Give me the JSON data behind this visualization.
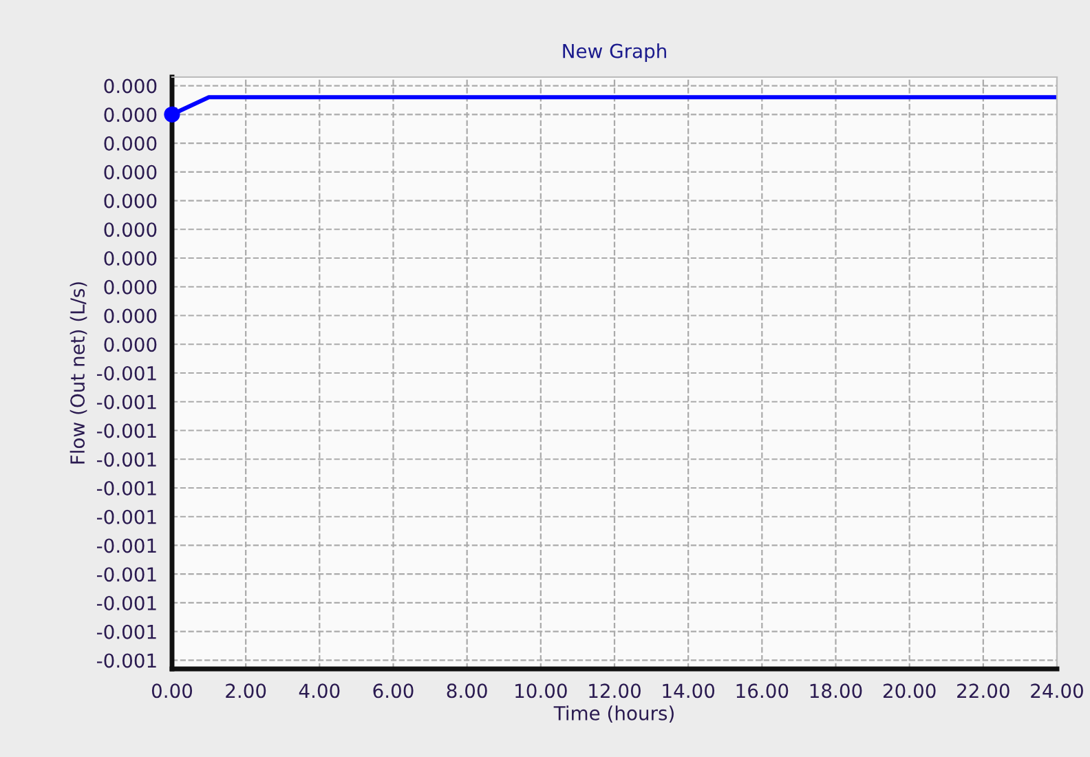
{
  "chart_data": {
    "type": "line",
    "title": "New Graph",
    "xlabel": "Time (hours)",
    "ylabel": "Flow (Out net) (L/s)",
    "x": [
      0,
      1.0,
      24
    ],
    "series": [
      {
        "color": "#0000ff",
        "values": [
          -5e-05,
          -2e-05,
          -2e-05
        ]
      },
      {
        "type": "scatter",
        "x": [
          0
        ],
        "color": "#0000ff",
        "values": [
          -5e-05
        ]
      }
    ],
    "xlim": [
      0,
      24
    ],
    "xticks": [
      {
        "value": 0,
        "label": "0.00"
      },
      {
        "value": 2,
        "label": "2.00"
      },
      {
        "value": 4,
        "label": "4.00"
      },
      {
        "value": 6,
        "label": "6.00"
      },
      {
        "value": 8,
        "label": "8.00"
      },
      {
        "value": 10,
        "label": "10.00"
      },
      {
        "value": 12,
        "label": "12.00"
      },
      {
        "value": 14,
        "label": "14.00"
      },
      {
        "value": 16,
        "label": "16.00"
      },
      {
        "value": 18,
        "label": "18.00"
      },
      {
        "value": 20,
        "label": "20.00"
      },
      {
        "value": 22,
        "label": "22.00"
      },
      {
        "value": 24,
        "label": "24.00"
      }
    ],
    "ylim": [
      -0.001015,
      1.5e-05
    ],
    "yticks": [
      {
        "value": 0,
        "label": "0.000"
      },
      {
        "value": -5e-05,
        "label": "0.000"
      },
      {
        "value": -0.0001,
        "label": "0.000"
      },
      {
        "value": -0.00015,
        "label": "0.000"
      },
      {
        "value": -0.0002,
        "label": "0.000"
      },
      {
        "value": -0.00025,
        "label": "0.000"
      },
      {
        "value": -0.0003,
        "label": "0.000"
      },
      {
        "value": -0.00035,
        "label": "0.000"
      },
      {
        "value": -0.0004,
        "label": "0.000"
      },
      {
        "value": -0.00045,
        "label": "0.000"
      },
      {
        "value": -0.0005,
        "label": "-0.001"
      },
      {
        "value": -0.00055,
        "label": "-0.001"
      },
      {
        "value": -0.0006,
        "label": "-0.001"
      },
      {
        "value": -0.00065,
        "label": "-0.001"
      },
      {
        "value": -0.0007,
        "label": "-0.001"
      },
      {
        "value": -0.00075,
        "label": "-0.001"
      },
      {
        "value": -0.0008,
        "label": "-0.001"
      },
      {
        "value": -0.00085,
        "label": "-0.001"
      },
      {
        "value": -0.0009,
        "label": "-0.001"
      },
      {
        "value": -0.00095,
        "label": "-0.001"
      },
      {
        "value": -0.001,
        "label": "-0.001"
      }
    ],
    "grid": true,
    "line_style": "solid"
  }
}
